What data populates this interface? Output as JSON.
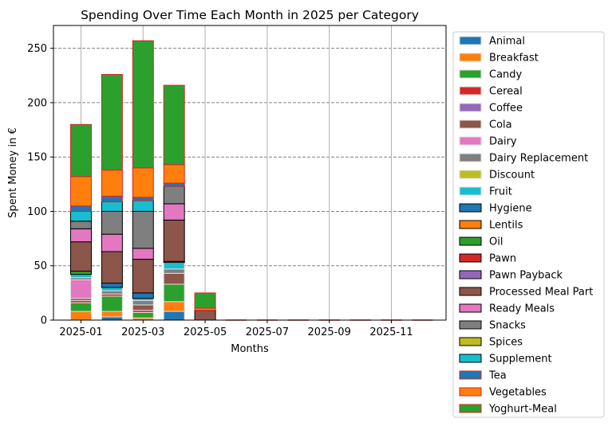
{
  "chart_data": {
    "type": "bar",
    "stacked": true,
    "title": "Spending Over Time Each Month in 2025 per Category",
    "xlabel": "Months",
    "ylabel": "Spent Money in €",
    "ylim": [
      0,
      271
    ],
    "yticks": [
      0,
      50,
      100,
      150,
      200,
      250
    ],
    "xticks": [
      "2025-01",
      "2025-03",
      "2025-05",
      "2025-07",
      "2025-09",
      "2025-11"
    ],
    "xlim": [
      0,
      11.8
    ],
    "grid": true,
    "legend_position": "outside-right",
    "categories": [
      "2025-01",
      "2025-02",
      "2025-03",
      "2025-04",
      "2025-05",
      "2025-06",
      "2025-07",
      "2025-08",
      "2025-09",
      "2025-10",
      "2025-11",
      "2025-12"
    ],
    "series": [
      {
        "name": "Animal",
        "color": "#1f77b4",
        "edge": "#dddddd",
        "values": [
          0,
          3,
          0,
          8,
          0,
          0,
          0,
          0,
          0,
          0,
          0,
          0
        ]
      },
      {
        "name": "Breakfast",
        "color": "#ff7f0e",
        "edge": "#dddddd",
        "values": [
          8,
          5,
          2,
          9,
          0,
          0,
          0,
          0,
          0,
          0,
          0,
          0
        ]
      },
      {
        "name": "Candy",
        "color": "#2ca02c",
        "edge": "#dddddd",
        "values": [
          8,
          14,
          5,
          16,
          0,
          0,
          0,
          0,
          0,
          0,
          0,
          0
        ]
      },
      {
        "name": "Cereal",
        "color": "#d62728",
        "edge": "#dddddd",
        "values": [
          2,
          2,
          2,
          0,
          0,
          0,
          0,
          0,
          0,
          0,
          0,
          0
        ]
      },
      {
        "name": "Coffee",
        "color": "#9467bd",
        "edge": "#dddddd",
        "values": [
          0,
          0,
          0,
          0,
          0,
          0,
          0,
          0,
          0,
          0,
          0,
          0
        ]
      },
      {
        "name": "Cola",
        "color": "#8c564b",
        "edge": "#dddddd",
        "values": [
          2,
          0,
          5,
          10,
          0,
          0,
          0,
          0,
          0,
          0,
          0,
          0
        ]
      },
      {
        "name": "Dairy",
        "color": "#e377c2",
        "edge": "#dddddd",
        "values": [
          17,
          0,
          0,
          0,
          0,
          0,
          0,
          0,
          0,
          0,
          0,
          0
        ]
      },
      {
        "name": "Dairy Replacement",
        "color": "#7f7f7f",
        "edge": "#dddddd",
        "values": [
          2,
          3,
          4,
          4,
          0,
          0,
          0,
          0,
          0,
          0,
          0,
          0
        ]
      },
      {
        "name": "Discount",
        "color": "#bcbd22",
        "edge": "#dddddd",
        "values": [
          0,
          0,
          0,
          0,
          0,
          0,
          0,
          0,
          0,
          0,
          0,
          0
        ]
      },
      {
        "name": "Fruit",
        "color": "#17becf",
        "edge": "#dddddd",
        "values": [
          3,
          3,
          2,
          6,
          0,
          0,
          0,
          0,
          0,
          0,
          0,
          0
        ]
      },
      {
        "name": "Hygiene",
        "color": "#1f77b4",
        "edge": "#000000",
        "values": [
          0,
          4,
          5,
          0,
          0,
          0,
          0,
          0,
          0,
          0,
          0,
          0
        ]
      },
      {
        "name": "Lentils",
        "color": "#ff7f0e",
        "edge": "#000000",
        "values": [
          0,
          0,
          0,
          1,
          0,
          0,
          0,
          0,
          0,
          0,
          0,
          0
        ]
      },
      {
        "name": "Oil",
        "color": "#2ca02c",
        "edge": "#000000",
        "values": [
          3,
          0,
          0,
          0,
          0,
          0,
          0,
          0,
          0,
          0,
          0,
          0
        ]
      },
      {
        "name": "Pawn",
        "color": "#d62728",
        "edge": "#000000",
        "values": [
          0,
          0,
          0,
          0,
          0,
          0,
          0,
          0,
          0,
          0,
          0,
          0
        ]
      },
      {
        "name": "Pawn Payback",
        "color": "#9467bd",
        "edge": "#000000",
        "values": [
          0,
          0,
          0,
          0,
          0,
          0,
          0,
          0,
          0,
          0,
          0,
          0
        ]
      },
      {
        "name": "Processed Meal Part",
        "color": "#8c564b",
        "edge": "#000000",
        "values": [
          27,
          29,
          31,
          38,
          9,
          0,
          0,
          0,
          0,
          0,
          0,
          0
        ]
      },
      {
        "name": "Ready Meals",
        "color": "#e377c2",
        "edge": "#000000",
        "values": [
          12,
          16,
          10,
          15,
          0,
          0,
          0,
          0,
          0,
          0,
          0,
          0
        ]
      },
      {
        "name": "Snacks",
        "color": "#7f7f7f",
        "edge": "#000000",
        "values": [
          7,
          21,
          34,
          16,
          0,
          0,
          0,
          0,
          0,
          0,
          0,
          0
        ]
      },
      {
        "name": "Spices",
        "color": "#bcbd22",
        "edge": "#000000",
        "values": [
          0,
          0,
          0,
          0,
          0,
          0,
          0,
          0,
          0,
          0,
          0,
          0
        ]
      },
      {
        "name": "Supplement",
        "color": "#17becf",
        "edge": "#000000",
        "values": [
          9,
          9,
          10,
          0,
          0,
          0,
          0,
          0,
          0,
          0,
          0,
          0
        ]
      },
      {
        "name": "Tea",
        "color": "#1f77b4",
        "edge": "#d62728",
        "values": [
          5,
          5,
          3,
          3,
          0,
          0,
          0,
          0,
          0,
          0,
          0,
          0
        ]
      },
      {
        "name": "Vegetables",
        "color": "#ff7f0e",
        "edge": "#d62728",
        "values": [
          27,
          24,
          27,
          17,
          2,
          0,
          0,
          0,
          0,
          0,
          0,
          0
        ]
      },
      {
        "name": "Yoghurt-Meal",
        "color": "#2ca02c",
        "edge": "#d62728",
        "values": [
          48,
          88,
          117,
          73,
          14,
          0,
          0,
          0,
          0,
          0,
          0,
          0
        ]
      }
    ]
  }
}
